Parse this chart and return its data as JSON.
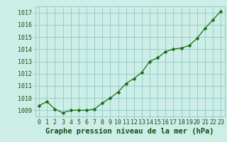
{
  "title": "Graphe pression niveau de la mer (hPa)",
  "x_values": [
    0,
    1,
    2,
    3,
    4,
    5,
    6,
    7,
    8,
    9,
    10,
    11,
    12,
    13,
    14,
    15,
    16,
    17,
    18,
    19,
    20,
    21,
    22,
    23
  ],
  "y_values": [
    1009.4,
    1009.7,
    1009.1,
    1008.8,
    1009.0,
    1009.0,
    1009.0,
    1009.1,
    1009.6,
    1010.0,
    1010.5,
    1011.2,
    1011.6,
    1012.1,
    1013.0,
    1013.3,
    1013.8,
    1014.0,
    1014.1,
    1014.3,
    1014.9,
    1015.7,
    1016.4,
    1017.1
  ],
  "line_color": "#1a6b1a",
  "marker": "D",
  "marker_size": 2.5,
  "background_color": "#cceee6",
  "grid_color": "#99cccc",
  "text_color": "#1a4a1a",
  "ylim_min": 1008.5,
  "ylim_max": 1017.5,
  "xlim_min": -0.5,
  "xlim_max": 23.5,
  "yticks": [
    1009,
    1010,
    1011,
    1012,
    1013,
    1014,
    1015,
    1016,
    1017
  ],
  "xticks": [
    0,
    1,
    2,
    3,
    4,
    5,
    6,
    7,
    8,
    9,
    10,
    11,
    12,
    13,
    14,
    15,
    16,
    17,
    18,
    19,
    20,
    21,
    22,
    23
  ],
  "title_fontsize": 7.5,
  "tick_fontsize": 6.0,
  "title_fontweight": "bold"
}
